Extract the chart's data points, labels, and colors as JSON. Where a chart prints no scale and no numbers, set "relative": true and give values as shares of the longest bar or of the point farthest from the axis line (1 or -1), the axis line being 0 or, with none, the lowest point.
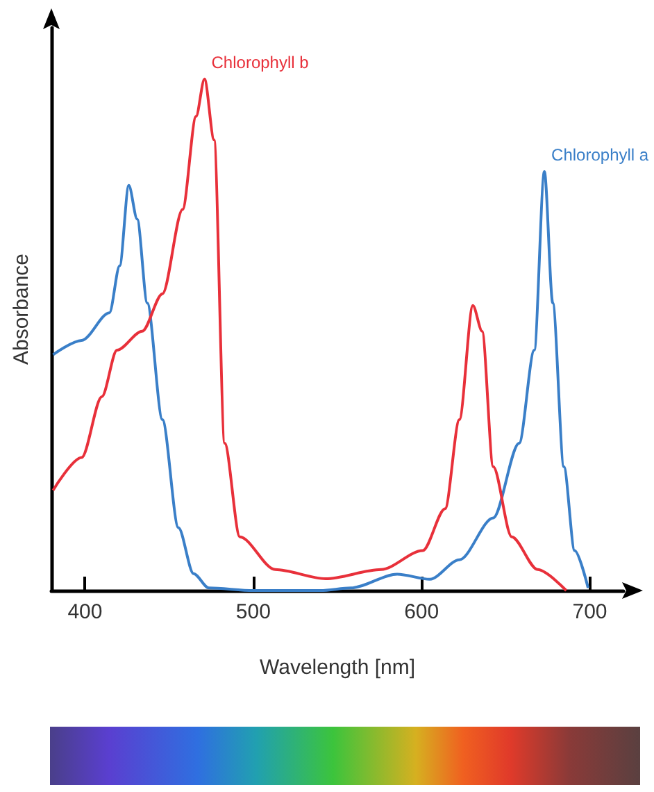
{
  "chart_data": {
    "type": "line",
    "relative": true,
    "xlabel": "Wavelength [nm]",
    "ylabel": "Absorbance",
    "xlim": [
      380,
      720
    ],
    "xticks": [
      400,
      500,
      600,
      700
    ],
    "grid": false,
    "legend": false,
    "marker": "none",
    "line_style": "solid",
    "series": [
      {
        "name": "Chlorophyll a",
        "color": "#3a7fc8",
        "x": [
          381,
          398,
          414.5,
          420.6,
          426,
          431,
          437,
          446,
          455.5,
          464.5,
          473.6,
          500,
          540,
          558,
          585.5,
          605,
          622.5,
          642.6,
          658,
          667,
          673,
          678,
          684.6,
          691,
          699
        ],
        "values": [
          0.461,
          0.489,
          0.543,
          0.635,
          0.792,
          0.726,
          0.562,
          0.334,
          0.123,
          0.033,
          0.005,
          0,
          0,
          0.005,
          0.032,
          0.022,
          0.06,
          0.142,
          0.288,
          0.47,
          0.819,
          0.562,
          0.242,
          0.078,
          0.005
        ]
      },
      {
        "name": "Chlorophyll b",
        "color": "#e8303a",
        "x": [
          381,
          398,
          410,
          419,
          434,
          446,
          458,
          466,
          471,
          476.7,
          483,
          492,
          513,
          543,
          576,
          600.7,
          614,
          622.5,
          630.5,
          636,
          642.6,
          653.6,
          669,
          686
        ],
        "values": [
          0.196,
          0.26,
          0.379,
          0.47,
          0.507,
          0.58,
          0.745,
          0.927,
          1,
          0.881,
          0.288,
          0.105,
          0.041,
          0.023,
          0.041,
          0.078,
          0.16,
          0.334,
          0.557,
          0.507,
          0.242,
          0.105,
          0.041,
          0
        ]
      }
    ]
  }
}
